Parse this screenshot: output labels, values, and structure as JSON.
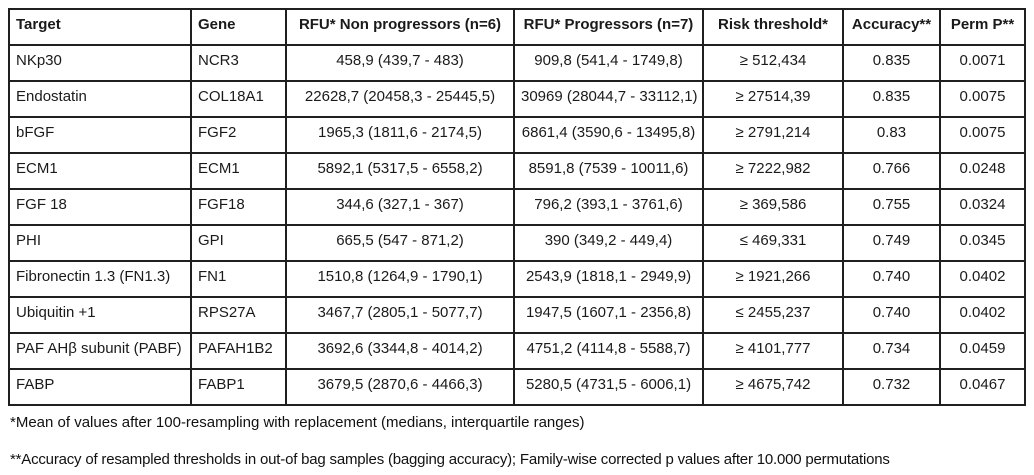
{
  "table": {
    "columns": [
      {
        "name": "target",
        "label": "Target",
        "align": "left"
      },
      {
        "name": "gene",
        "label": "Gene",
        "align": "left"
      },
      {
        "name": "rfu-non-progressors",
        "label": "RFU* Non progressors (n=6)",
        "align": "center"
      },
      {
        "name": "rfu-progressors",
        "label": "RFU* Progressors (n=7)",
        "align": "center"
      },
      {
        "name": "risk-threshold",
        "label": "Risk threshold*",
        "align": "center"
      },
      {
        "name": "accuracy",
        "label": "Accuracy**",
        "align": "center"
      },
      {
        "name": "perm-p",
        "label": "Perm P**",
        "align": "center"
      }
    ],
    "rows": [
      [
        "NKp30",
        "NCR3",
        "458,9 (439,7 - 483)",
        "909,8 (541,4 - 1749,8)",
        "≥ 512,434",
        "0.835",
        "0.0071"
      ],
      [
        "Endostatin",
        "COL18A1",
        "22628,7 (20458,3 - 25445,5)",
        "30969 (28044,7 - 33112,1)",
        "≥ 27514,39",
        "0.835",
        "0.0075"
      ],
      [
        "bFGF",
        "FGF2",
        "1965,3 (1811,6 - 2174,5)",
        "6861,4 (3590,6 - 13495,8)",
        "≥ 2791,214",
        "0.83",
        "0.0075"
      ],
      [
        "ECM1",
        "ECM1",
        "5892,1 (5317,5 - 6558,2)",
        "8591,8 (7539 - 10011,6)",
        "≥ 7222,982",
        "0.766",
        "0.0248"
      ],
      [
        "FGF 18",
        "FGF18",
        "344,6 (327,1 - 367)",
        "796,2 (393,1 - 3761,6)",
        "≥ 369,586",
        "0.755",
        "0.0324"
      ],
      [
        "PHI",
        "GPI",
        "665,5 (547 - 871,2)",
        "390 (349,2 - 449,4)",
        "≤  469,331",
        "0.749",
        "0.0345"
      ],
      [
        "Fibronectin 1.3 (FN1.3)",
        "FN1",
        "1510,8 (1264,9 - 1790,1)",
        "2543,9 (1818,1 - 2949,9)",
        "≥ 1921,266",
        "0.740",
        "0.0402"
      ],
      [
        "Ubiquitin +1",
        "RPS27A",
        "3467,7 (2805,1 - 5077,7)",
        "1947,5 (1607,1 - 2356,8)",
        "≤ 2455,237",
        "0.740",
        "0.0402"
      ],
      [
        "PAF AHβ subunit (PABF)",
        "PAFAH1B2",
        "3692,6 (3344,8 - 4014,2)",
        "4751,2 (4114,8 - 5588,7)",
        "≥ 4101,777",
        "0.734",
        "0.0459"
      ],
      [
        "FABP",
        "FABP1",
        "3679,5 (2870,6 - 4466,3)",
        "5280,5 (4731,5 - 6006,1)",
        "≥ 4675,742",
        "0.732",
        "0.0467"
      ]
    ]
  },
  "footnotes": [
    "*Mean of values after 100-resampling with replacement (medians, interquartile ranges)",
    "**Accuracy of resampled thresholds in out-of bag samples (bagging accuracy); Family-wise corrected p values after 10.000 permutations"
  ]
}
